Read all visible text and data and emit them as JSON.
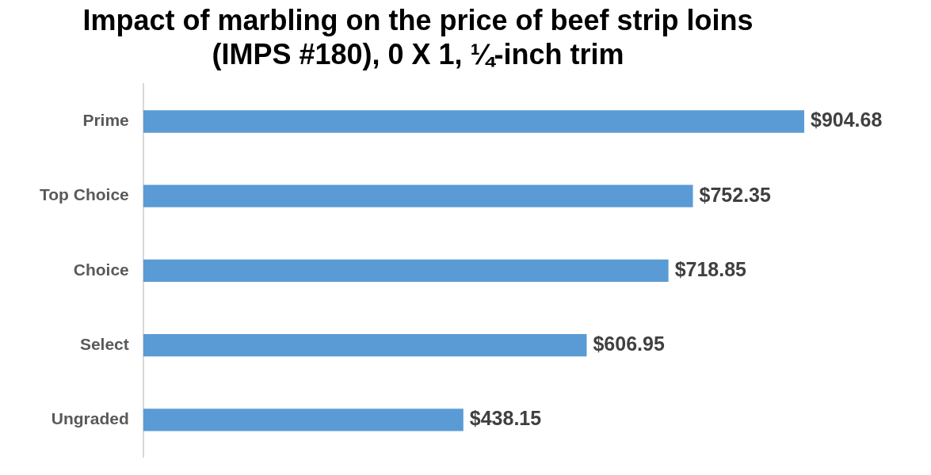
{
  "chart_data": {
    "type": "bar",
    "orientation": "horizontal",
    "title": "Impact of marbling on the price of beef strip loins\n(IMPS #180), 0 X 1, ¼-inch trim",
    "categories": [
      "Prime",
      "Top Choice",
      "Choice",
      "Select",
      "Ungraded"
    ],
    "values": [
      904.68,
      752.35,
      718.85,
      606.95,
      438.15
    ],
    "value_labels": [
      "$904.68",
      "$752.35",
      "$718.85",
      "$606.95",
      "$438.15"
    ],
    "color": "#5b9bd5"
  }
}
